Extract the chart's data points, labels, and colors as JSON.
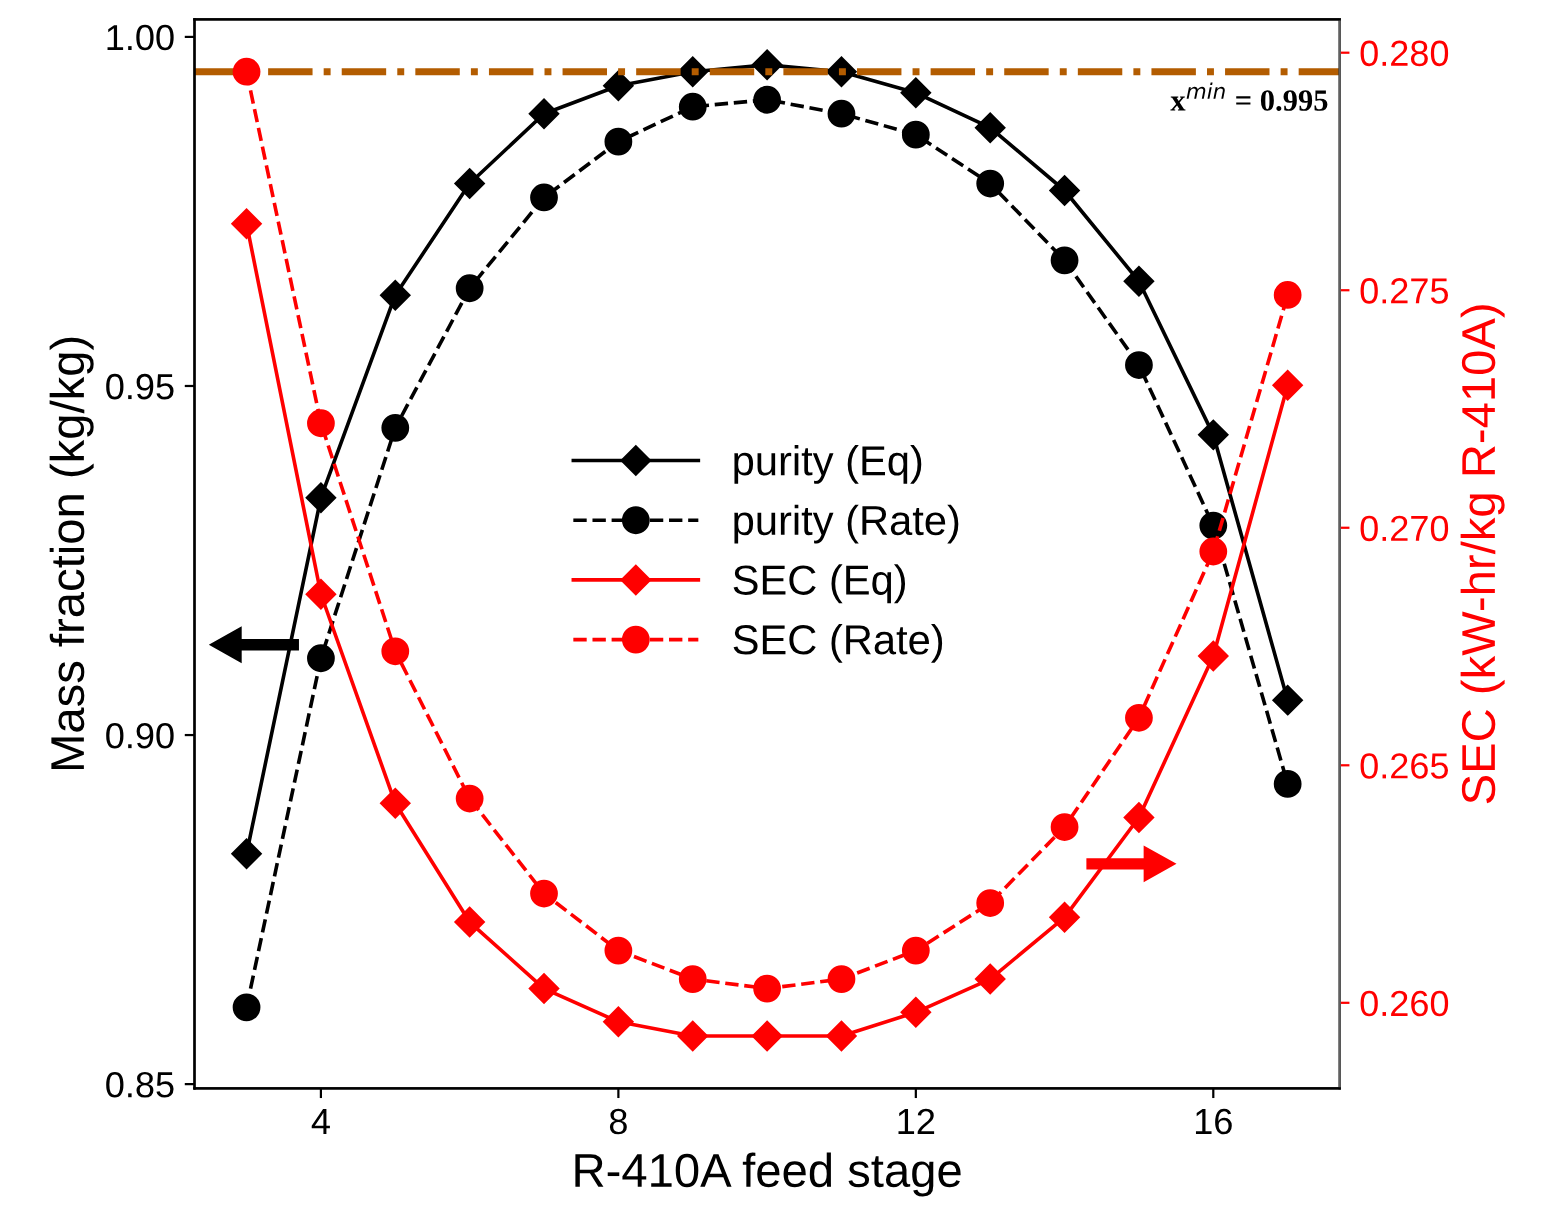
{
  "chart_data": {
    "type": "line",
    "xlabel": "R-410A feed stage",
    "ylabel": "Mass fraction (kg/kg)",
    "y2label": "SEC (kW-hr/kg R-410A)",
    "x": [
      3,
      4,
      5,
      6,
      7,
      8,
      9,
      10,
      11,
      12,
      13,
      14,
      15,
      16,
      17
    ],
    "series": [
      {
        "name": "purity (Eq)",
        "color": "#000000",
        "marker": "diamond",
        "line_style": "solid",
        "values": [
          0.883,
          0.934,
          0.963,
          0.979,
          0.989,
          0.993,
          0.995,
          0.996,
          0.995,
          0.992,
          0.987,
          0.978,
          0.965,
          0.943,
          0.905
        ]
      },
      {
        "name": "purity (Rate)",
        "color": "#000000",
        "marker": "circle",
        "line_style": "dashed",
        "values": [
          0.861,
          0.911,
          0.944,
          0.964,
          0.977,
          0.985,
          0.99,
          0.991,
          0.989,
          0.986,
          0.979,
          0.968,
          0.953,
          0.93,
          0.893
        ]
      },
      {
        "name": "SEC (Eq)",
        "color": "#ff0000",
        "marker": "diamond",
        "line_style": "solid",
        "axis": "y2",
        "values": [
          0.2764,
          0.2686,
          0.2642,
          0.2617,
          0.2603,
          0.2596,
          0.2593,
          0.2593,
          0.2593,
          0.2598,
          0.2605,
          0.2618,
          0.2639,
          0.2673,
          0.273
        ]
      },
      {
        "name": "SEC (Rate)",
        "color": "#ff0000",
        "marker": "circle",
        "line_style": "dashed",
        "axis": "y2",
        "values": [
          0.2796,
          0.2722,
          0.2674,
          0.2643,
          0.2623,
          0.2611,
          0.2605,
          0.2603,
          0.2605,
          0.2611,
          0.2621,
          0.2637,
          0.266,
          0.2695,
          0.2749
        ]
      }
    ],
    "xlim": [
      2.3,
      17.7
    ],
    "xticks": [
      4,
      8,
      12,
      16
    ],
    "ylim": [
      0.8494,
      1.0025
    ],
    "yticks": [
      {
        "value": 0.85,
        "label": "0.85"
      },
      {
        "value": 0.9,
        "label": "0.90"
      },
      {
        "value": 0.95,
        "label": "0.95"
      },
      {
        "value": 1.0,
        "label": "1.00"
      }
    ],
    "y2lim": [
      0.2582,
      0.2807
    ],
    "y2ticks": [
      {
        "value": 0.26,
        "label": "0.260"
      },
      {
        "value": 0.265,
        "label": "0.265"
      },
      {
        "value": 0.27,
        "label": "0.270"
      },
      {
        "value": 0.275,
        "label": "0.275"
      },
      {
        "value": 0.28,
        "label": "0.280"
      }
    ],
    "ref_lines": [
      {
        "axis": "y",
        "value": 0.995,
        "label": "x$^{min}$ = 0.995",
        "color": "#b35c00",
        "line_style": "dashdot"
      }
    ],
    "legend": "center",
    "grid": false
  }
}
